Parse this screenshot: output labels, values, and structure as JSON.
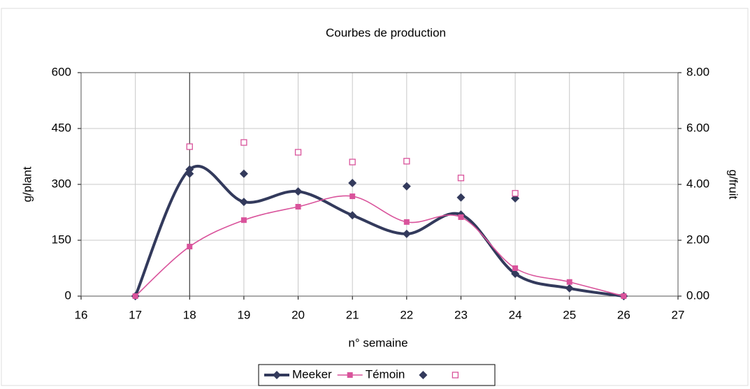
{
  "chart_data": {
    "type": "line",
    "title": "Courbes de production",
    "xlabel": "n° semaine",
    "ylabel": "g/plant",
    "y2label": "g/fruit",
    "xlim": [
      16,
      27
    ],
    "xticks": [
      16,
      17,
      18,
      19,
      20,
      21,
      22,
      23,
      24,
      25,
      26,
      27
    ],
    "ylim": [
      0,
      600
    ],
    "yticks": [
      0,
      150,
      300,
      450,
      600
    ],
    "y2lim": [
      0,
      8
    ],
    "y2ticks": [
      {
        "value": 0,
        "label": "0.00"
      },
      {
        "value": 2,
        "label": "2.00"
      },
      {
        "value": 4,
        "label": "4.00"
      },
      {
        "value": 6,
        "label": "6.00"
      },
      {
        "value": 8,
        "label": "8.00"
      }
    ],
    "grid": true,
    "series": [
      {
        "name": "Meeker",
        "color": "#333a5c",
        "marker": "diamond",
        "style": "line",
        "x": [
          17,
          18,
          19,
          20,
          21,
          22,
          23,
          24,
          25,
          26
        ],
        "values": [
          0,
          340,
          253,
          281,
          217,
          167,
          219,
          60,
          21,
          0
        ]
      },
      {
        "name": "Témoin",
        "color": "#d9539b",
        "marker": "square",
        "style": "line",
        "x": [
          17,
          18,
          19,
          20,
          21,
          22,
          23,
          24,
          25,
          26
        ],
        "values": [
          0,
          133,
          204,
          240,
          268,
          199,
          212,
          75,
          38,
          0
        ]
      },
      {
        "color": "#333a5c",
        "marker": "diamond",
        "style": "points",
        "axis": "y2",
        "x": [
          18,
          19,
          21,
          22,
          23,
          24
        ],
        "values": [
          4.38,
          4.38,
          4.05,
          3.93,
          3.53,
          3.5
        ]
      },
      {
        "color": "#d9539b",
        "marker": "open-square",
        "style": "points",
        "axis": "y2",
        "x": [
          18,
          19,
          20,
          21,
          22,
          23,
          24
        ],
        "values": [
          5.35,
          5.5,
          5.15,
          4.8,
          4.83,
          4.23,
          3.68
        ]
      }
    ]
  }
}
